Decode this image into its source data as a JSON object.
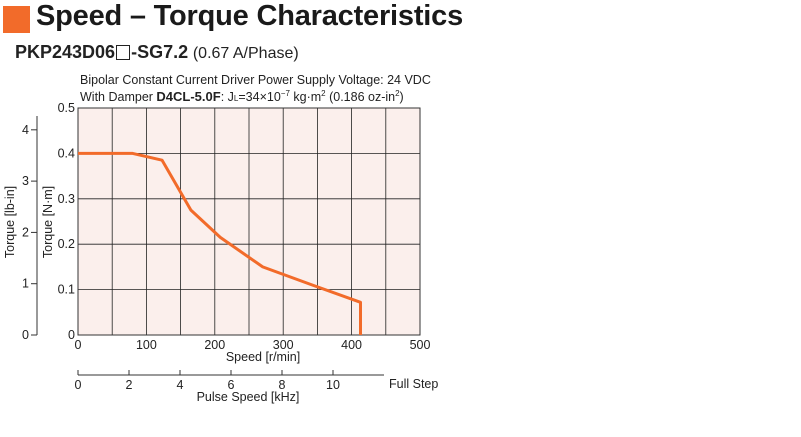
{
  "header": {
    "title": "Speed – Torque Characteristics",
    "accent_color": "#f26b2a",
    "model_prefix": "PKP243D06",
    "model_suffix": "-SG7.2",
    "current_note": "(0.67 A/Phase)"
  },
  "conditions": {
    "driver_line": "Bipolar Constant Current Driver  Power Supply Voltage: 24 VDC",
    "damper_prefix": "With Damper ",
    "damper_model": "D4CL-5.0F",
    "inertia_J": "J",
    "inertia_sub": "L",
    "inertia_value": "=34×10",
    "inertia_exp": "−7",
    "inertia_unit": " kg·m",
    "inertia_unit_exp": "2",
    "inertia_oz": " (0.186 oz-in",
    "inertia_oz_exp": "2",
    "inertia_close": ")"
  },
  "chart_data": {
    "type": "line",
    "xlabel": "Speed [r/min]",
    "x_ticks": [
      "0",
      "100",
      "200",
      "300",
      "400",
      "500"
    ],
    "xlim": [
      0,
      500
    ],
    "ylabel": "Torque [N·m]",
    "y_ticks": [
      "0",
      "0.1",
      "0.2",
      "0.3",
      "0.4",
      "0.5"
    ],
    "ylim": [
      0,
      0.5
    ],
    "ylabel_secondary": "Torque [lb-in]",
    "y2_ticks": [
      "0",
      "1",
      "2",
      "3",
      "4"
    ],
    "y2lim": [
      0,
      4.4254
    ],
    "x2label": "Pulse Speed [kHz]",
    "x2_ticks": [
      "0",
      "2",
      "4",
      "6",
      "8",
      "10"
    ],
    "x2lim": [
      0,
      12
    ],
    "x2_suffix": "Full Step",
    "grid": true,
    "plot_background": "#fbefec",
    "line_color": "#f26b2a",
    "series": [
      {
        "x": [
          0,
          80,
          123,
          165,
          208,
          270,
          343,
          413,
          413
        ],
        "y": [
          0.4,
          0.4,
          0.385,
          0.275,
          0.215,
          0.15,
          0.11,
          0.072,
          0
        ]
      }
    ]
  }
}
